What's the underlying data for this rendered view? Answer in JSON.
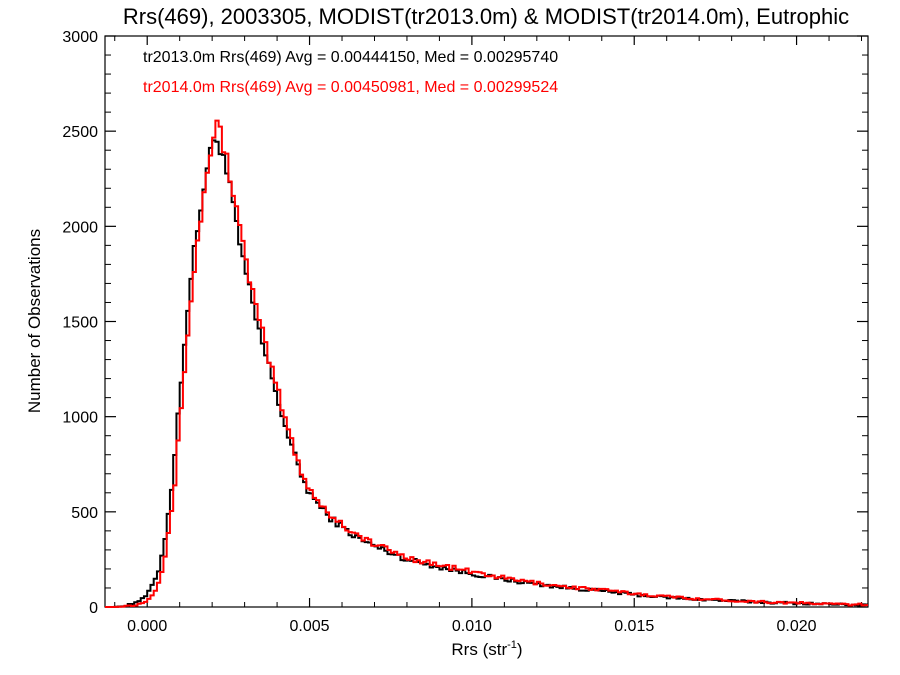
{
  "chart_data": {
    "type": "line",
    "title": "Rrs(469), 2003305, MODIST(tr2013.0m) & MODIST(tr2014.0m), Eutrophic",
    "xlabel": "Rrs (str",
    "xlabel_sup": "-1",
    "xlabel_suffix": ")",
    "ylabel": "Number of Observations",
    "xlim": [
      -0.0013,
      0.0222
    ],
    "ylim": [
      0,
      3000
    ],
    "x_ticks": [
      0.0,
      0.005,
      0.01,
      0.015,
      0.02
    ],
    "x_tick_labels": [
      "0.000",
      "0.005",
      "0.010",
      "0.015",
      "0.020"
    ],
    "y_ticks": [
      0,
      500,
      1000,
      1500,
      2000,
      2500,
      3000
    ],
    "y_tick_labels": [
      "0",
      "500",
      "1000",
      "1500",
      "2000",
      "2500",
      "3000"
    ],
    "grid": false,
    "legend_position": "top-left",
    "bin_width": 0.0001,
    "series": [
      {
        "name": "tr2013.0m",
        "color": "#000000",
        "annotation": "tr2013.0m Rrs(469) Avg = 0.00444150, Med = 0.00295740",
        "points": [
          [
            -0.0013,
            0
          ],
          [
            -0.001,
            0
          ],
          [
            -0.0008,
            5
          ],
          [
            -0.0005,
            15
          ],
          [
            -0.0003,
            30
          ],
          [
            -0.0001,
            45
          ],
          [
            0.0,
            70
          ],
          [
            0.0002,
            120
          ],
          [
            0.0004,
            220
          ],
          [
            0.0006,
            420
          ],
          [
            0.0008,
            700
          ],
          [
            0.001,
            1100
          ],
          [
            0.0012,
            1500
          ],
          [
            0.0014,
            1800
          ],
          [
            0.0016,
            2050
          ],
          [
            0.0018,
            2260
          ],
          [
            0.002,
            2420
          ],
          [
            0.0021,
            2470
          ],
          [
            0.0022,
            2450
          ],
          [
            0.0024,
            2330
          ],
          [
            0.0026,
            2150
          ],
          [
            0.0028,
            1950
          ],
          [
            0.003,
            1780
          ],
          [
            0.0032,
            1620
          ],
          [
            0.0034,
            1480
          ],
          [
            0.0036,
            1350
          ],
          [
            0.0038,
            1230
          ],
          [
            0.004,
            1110
          ],
          [
            0.0042,
            980
          ],
          [
            0.0044,
            870
          ],
          [
            0.0046,
            760
          ],
          [
            0.0048,
            670
          ],
          [
            0.005,
            600
          ],
          [
            0.0055,
            490
          ],
          [
            0.006,
            420
          ],
          [
            0.0065,
            360
          ],
          [
            0.007,
            320
          ],
          [
            0.0075,
            285
          ],
          [
            0.008,
            250
          ],
          [
            0.009,
            210
          ],
          [
            0.01,
            175
          ],
          [
            0.011,
            145
          ],
          [
            0.012,
            120
          ],
          [
            0.013,
            100
          ],
          [
            0.014,
            85
          ],
          [
            0.015,
            65
          ],
          [
            0.016,
            50
          ],
          [
            0.017,
            40
          ],
          [
            0.018,
            32
          ],
          [
            0.019,
            25
          ],
          [
            0.02,
            20
          ],
          [
            0.021,
            15
          ],
          [
            0.0222,
            10
          ]
        ]
      },
      {
        "name": "tr2014.0m",
        "color": "#ff0000",
        "annotation": "tr2014.0m Rrs(469) Avg = 0.00450981, Med = 0.00299524",
        "points": [
          [
            -0.0013,
            0
          ],
          [
            -0.001,
            0
          ],
          [
            -0.0008,
            2
          ],
          [
            -0.0005,
            8
          ],
          [
            -0.0003,
            15
          ],
          [
            -0.0001,
            25
          ],
          [
            0.0,
            40
          ],
          [
            0.0002,
            75
          ],
          [
            0.0004,
            150
          ],
          [
            0.0006,
            310
          ],
          [
            0.0008,
            560
          ],
          [
            0.001,
            950
          ],
          [
            0.0012,
            1350
          ],
          [
            0.0014,
            1700
          ],
          [
            0.0016,
            1980
          ],
          [
            0.0018,
            2230
          ],
          [
            0.002,
            2440
          ],
          [
            0.0021,
            2550
          ],
          [
            0.0022,
            2520
          ],
          [
            0.0024,
            2400
          ],
          [
            0.0026,
            2230
          ],
          [
            0.0028,
            2030
          ],
          [
            0.003,
            1850
          ],
          [
            0.0032,
            1690
          ],
          [
            0.0034,
            1540
          ],
          [
            0.0036,
            1400
          ],
          [
            0.0038,
            1270
          ],
          [
            0.004,
            1150
          ],
          [
            0.0042,
            1020
          ],
          [
            0.0044,
            900
          ],
          [
            0.0046,
            790
          ],
          [
            0.0048,
            690
          ],
          [
            0.005,
            620
          ],
          [
            0.0055,
            505
          ],
          [
            0.006,
            435
          ],
          [
            0.0065,
            375
          ],
          [
            0.007,
            330
          ],
          [
            0.0075,
            295
          ],
          [
            0.008,
            260
          ],
          [
            0.009,
            220
          ],
          [
            0.01,
            185
          ],
          [
            0.011,
            152
          ],
          [
            0.012,
            126
          ],
          [
            0.013,
            105
          ],
          [
            0.014,
            90
          ],
          [
            0.015,
            70
          ],
          [
            0.016,
            55
          ],
          [
            0.017,
            43
          ],
          [
            0.018,
            34
          ],
          [
            0.019,
            27
          ],
          [
            0.02,
            21
          ],
          [
            0.021,
            16
          ],
          [
            0.0222,
            11
          ]
        ]
      }
    ]
  }
}
